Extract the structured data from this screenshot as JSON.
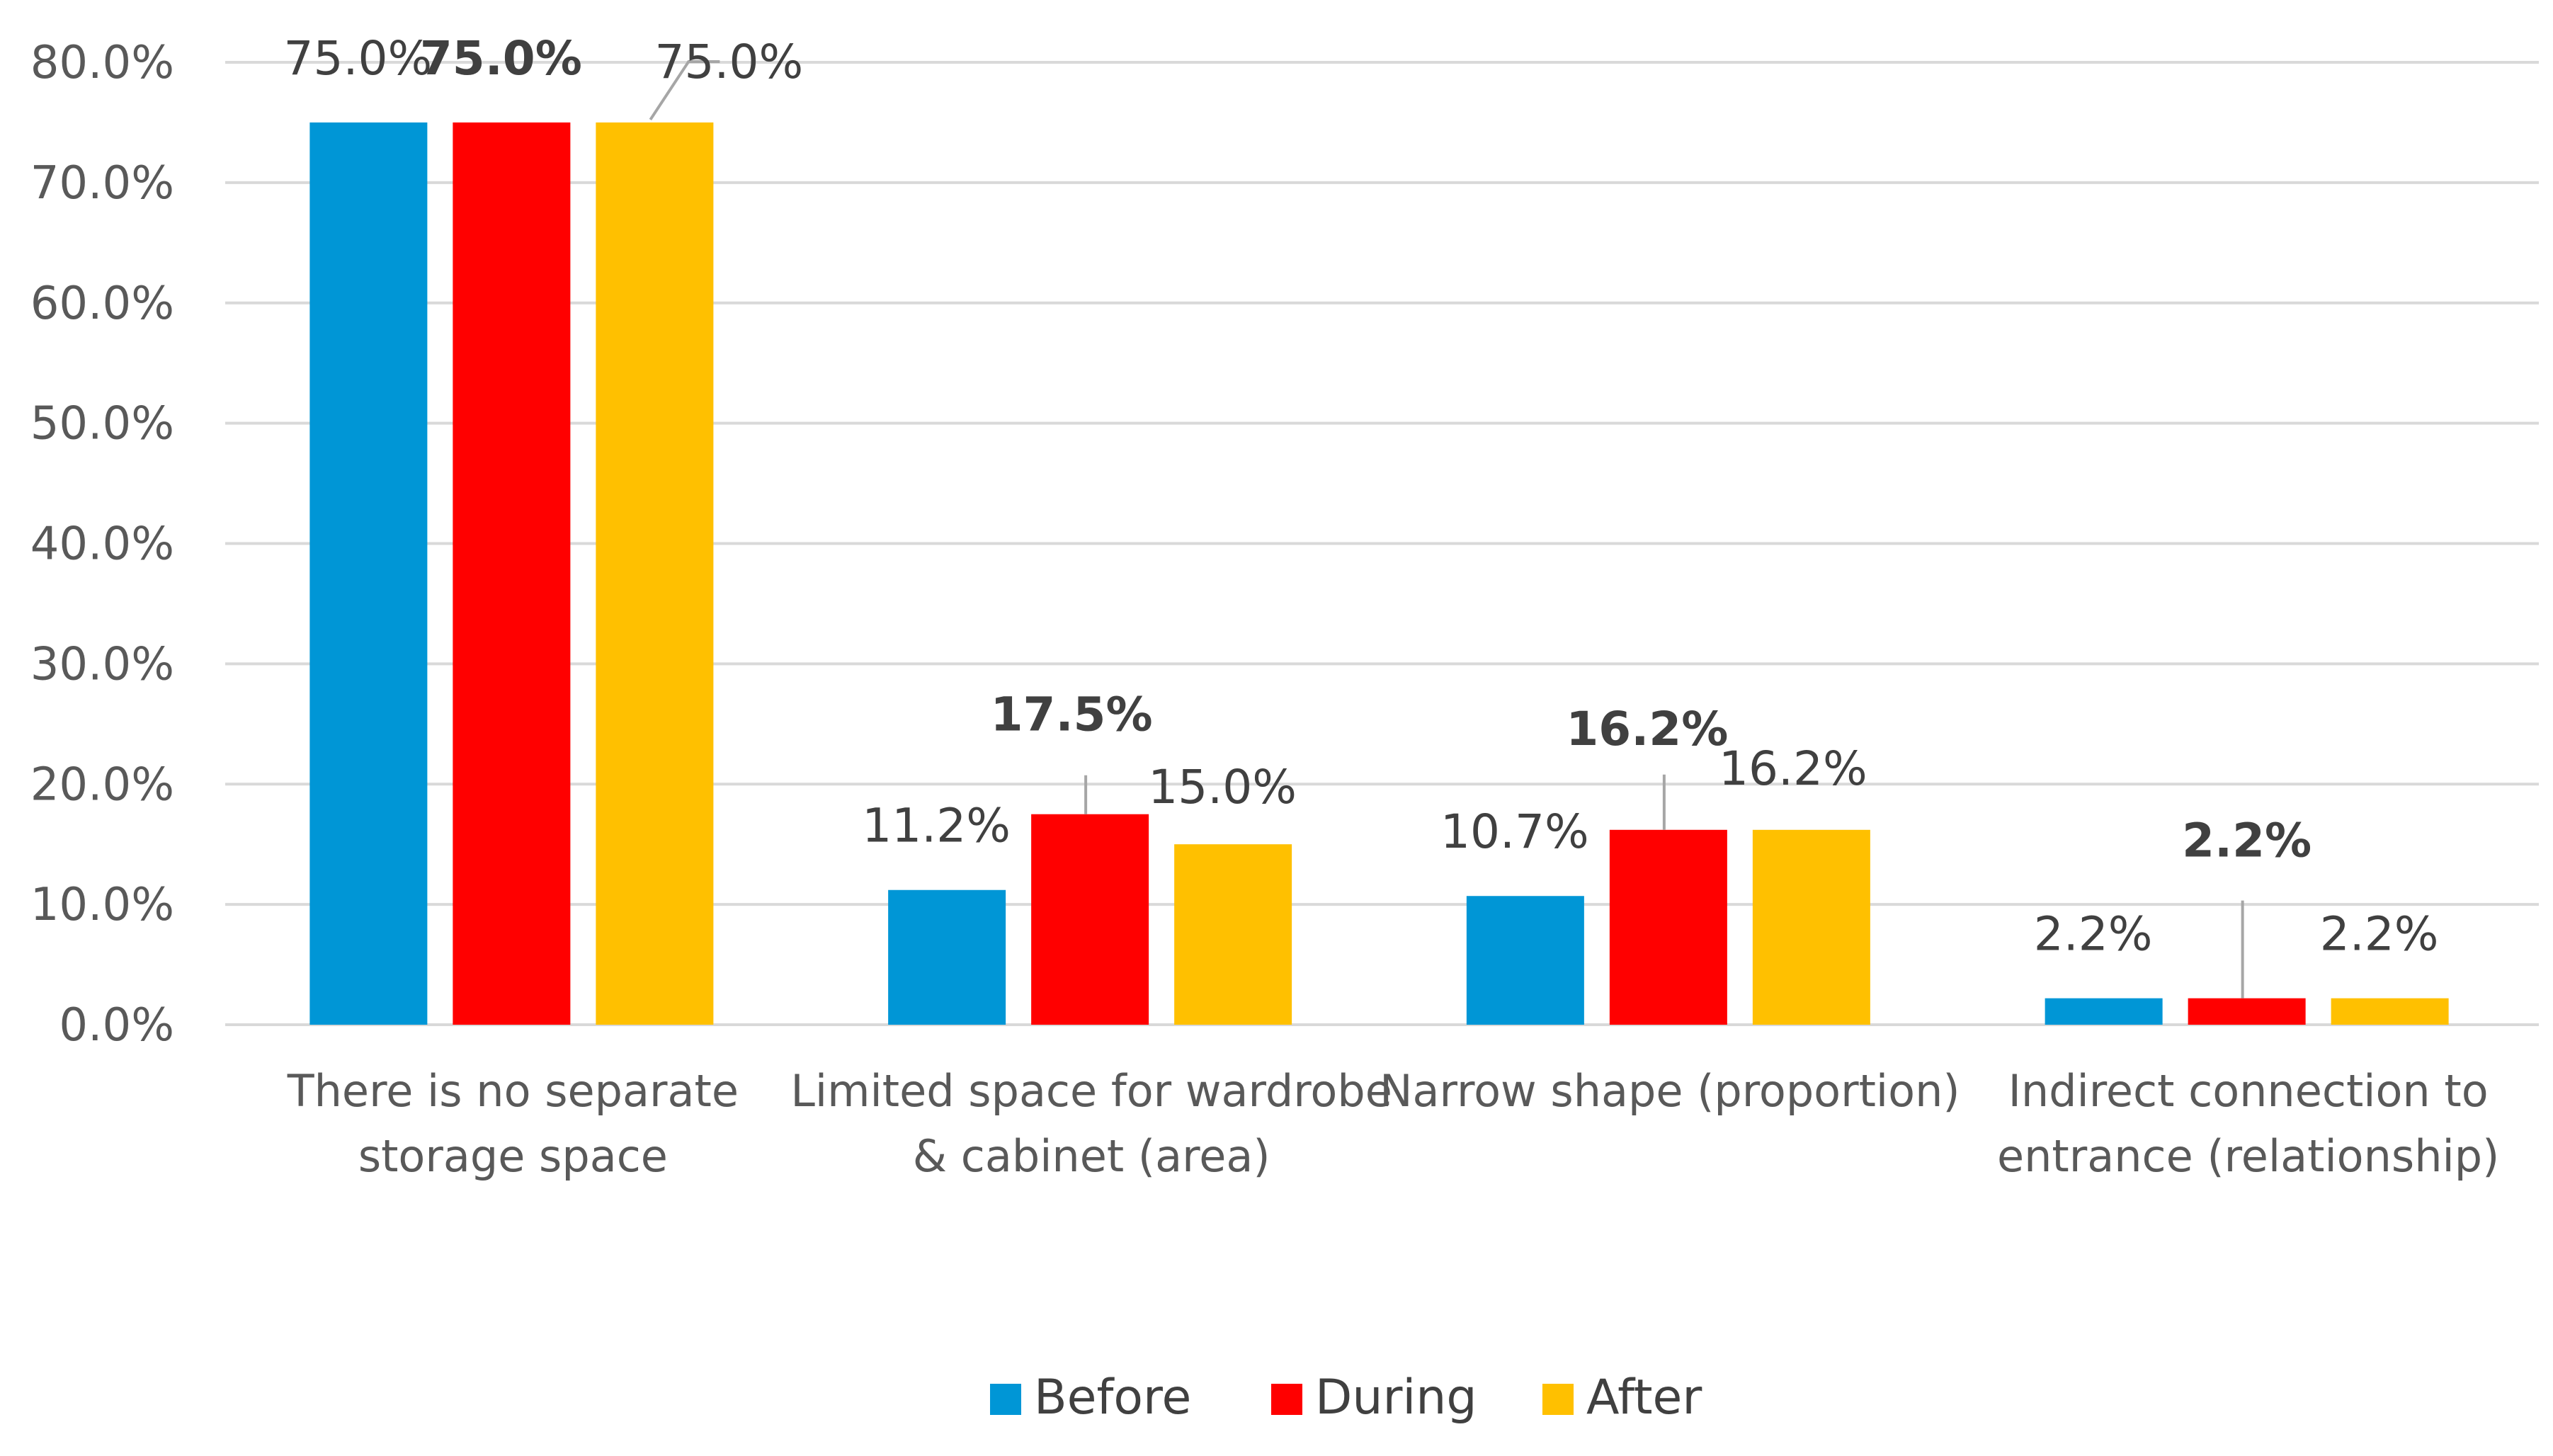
{
  "chart_data": {
    "type": "bar",
    "categories": [
      [
        "There is no separate",
        "storage space"
      ],
      [
        "Limited space for wardrobe",
        "& cabinet (area)"
      ],
      [
        "Narrow shape (proportion)"
      ],
      [
        "Indirect connection to",
        "entrance (relationship)"
      ]
    ],
    "series": [
      {
        "name": "Before",
        "color": "#0096d6",
        "values": [
          75.0,
          11.2,
          10.7,
          2.2
        ],
        "labels": [
          "75.0%",
          "11.2%",
          "10.7%",
          "2.2%"
        ],
        "bold": false
      },
      {
        "name": "During",
        "color": "#ff0000",
        "values": [
          75.0,
          17.5,
          16.2,
          2.2
        ],
        "labels": [
          "75.0%",
          "17.5%",
          "16.2%",
          "2.2%"
        ],
        "bold": true
      },
      {
        "name": "After",
        "color": "#ffc000",
        "values": [
          75.0,
          15.0,
          16.2,
          2.2
        ],
        "labels": [
          "75.0%",
          "15.0%",
          "16.2%",
          "2.2%"
        ],
        "bold": false
      }
    ],
    "yticks": [
      "0.0%",
      "10.0%",
      "20.0%",
      "30.0%",
      "40.0%",
      "50.0%",
      "60.0%",
      "70.0%",
      "80.0%"
    ],
    "ylim": [
      0,
      80
    ],
    "grid": true,
    "legend_position": "bottom"
  }
}
